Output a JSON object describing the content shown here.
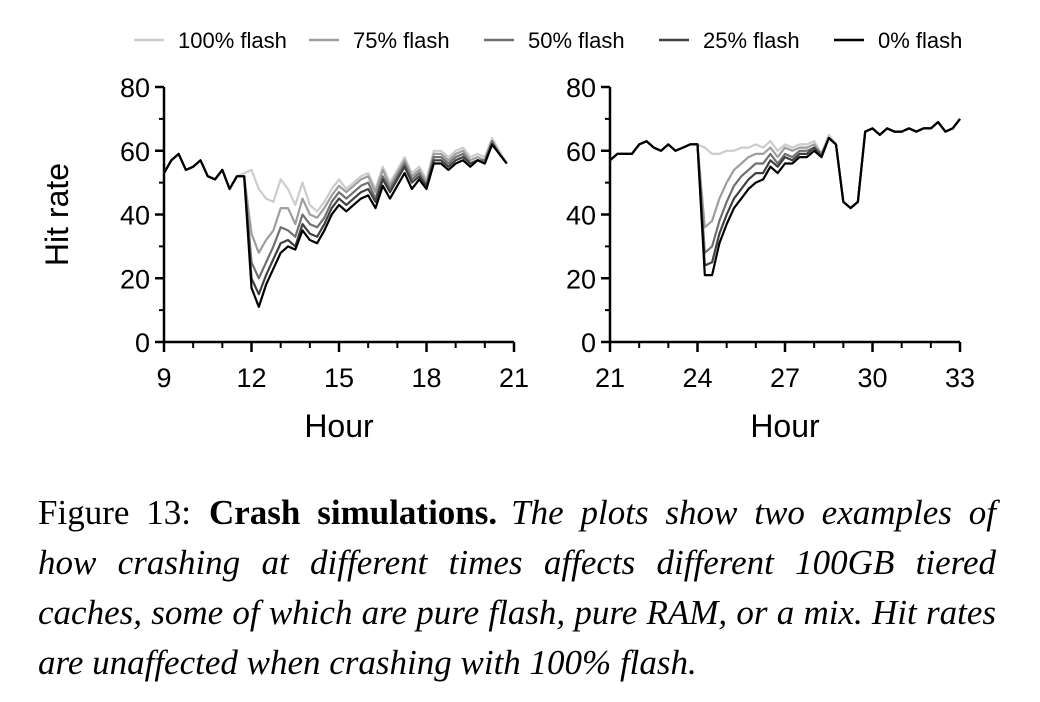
{
  "legend": [
    {
      "label": "100% flash",
      "color": "#cccccc"
    },
    {
      "label": "75% flash",
      "color": "#9e9e9e"
    },
    {
      "label": "50% flash",
      "color": "#707070"
    },
    {
      "label": "25% flash",
      "color": "#404040"
    },
    {
      "label": "0% flash",
      "color": "#000000"
    }
  ],
  "chart_data": [
    {
      "type": "line",
      "xlabel": "Hour",
      "ylabel": "Hit rate",
      "xlim": [
        9,
        21
      ],
      "ylim": [
        0,
        80
      ],
      "xticks": [
        "9",
        "12",
        "15",
        "18",
        "21"
      ],
      "yticks": [
        "0",
        "20",
        "40",
        "60",
        "80"
      ],
      "grid": false,
      "legend_position": "top",
      "x": [
        9.0,
        9.25,
        9.5,
        9.75,
        10.0,
        10.25,
        10.5,
        10.75,
        11.0,
        11.25,
        11.5,
        11.75,
        12.0,
        12.25,
        12.5,
        12.75,
        13.0,
        13.25,
        13.5,
        13.75,
        14.0,
        14.25,
        14.5,
        14.75,
        15.0,
        15.25,
        15.5,
        15.75,
        16.0,
        16.25,
        16.5,
        16.75,
        17.0,
        17.25,
        17.5,
        17.75,
        18.0,
        18.25,
        18.5,
        18.75,
        19.0,
        19.25,
        19.5,
        19.75,
        20.0,
        20.25,
        20.5,
        20.75
      ],
      "series": [
        {
          "name": "100% flash",
          "values": [
            53,
            57,
            59,
            54,
            55,
            57,
            52,
            51,
            54,
            48,
            52,
            53,
            54,
            48,
            45,
            44,
            51,
            48,
            43,
            50,
            43,
            41,
            44,
            48,
            51,
            48,
            50,
            52,
            53,
            48,
            55,
            50,
            54,
            58,
            53,
            55,
            51,
            60,
            60,
            58,
            60,
            61,
            58,
            59,
            58,
            64,
            60,
            56
          ]
        },
        {
          "name": "75% flash",
          "values": [
            53,
            57,
            59,
            54,
            55,
            57,
            52,
            51,
            54,
            48,
            52,
            52,
            34,
            28,
            32,
            35,
            42,
            42,
            37,
            45,
            40,
            39,
            42,
            46,
            49,
            47,
            49,
            51,
            52,
            47,
            54,
            49,
            53,
            57,
            52,
            54,
            50,
            59,
            59,
            57,
            59,
            60,
            57,
            58,
            57,
            63,
            59,
            56
          ]
        },
        {
          "name": "50% flash",
          "values": [
            53,
            57,
            59,
            54,
            55,
            57,
            52,
            51,
            54,
            48,
            52,
            52,
            25,
            20,
            25,
            30,
            36,
            35,
            33,
            40,
            37,
            36,
            39,
            44,
            47,
            45,
            47,
            49,
            50,
            45,
            52,
            48,
            52,
            56,
            51,
            53,
            49,
            58,
            58,
            56,
            58,
            59,
            56,
            57,
            57,
            63,
            59,
            56
          ]
        },
        {
          "name": "25% flash",
          "values": [
            53,
            57,
            59,
            54,
            55,
            57,
            52,
            51,
            54,
            48,
            52,
            52,
            20,
            15,
            21,
            26,
            31,
            32,
            30,
            37,
            34,
            33,
            37,
            42,
            45,
            43,
            45,
            47,
            48,
            44,
            51,
            47,
            51,
            55,
            50,
            52,
            49,
            57,
            57,
            55,
            57,
            58,
            56,
            57,
            56,
            62,
            59,
            56
          ]
        },
        {
          "name": "0% flash",
          "values": [
            53,
            57,
            59,
            54,
            55,
            57,
            52,
            51,
            54,
            48,
            52,
            52,
            17,
            11,
            18,
            23,
            28,
            30,
            29,
            35,
            32,
            31,
            35,
            40,
            43,
            41,
            43,
            45,
            46,
            42,
            49,
            45,
            49,
            53,
            48,
            51,
            48,
            56,
            56,
            54,
            56,
            57,
            55,
            57,
            56,
            62,
            59,
            56
          ]
        }
      ]
    },
    {
      "type": "line",
      "xlabel": "Hour",
      "ylabel": "",
      "xlim": [
        21,
        33
      ],
      "ylim": [
        0,
        80
      ],
      "xticks": [
        "21",
        "24",
        "27",
        "30",
        "33"
      ],
      "yticks": [
        "0",
        "20",
        "40",
        "60",
        "80"
      ],
      "grid": false,
      "x": [
        21.0,
        21.25,
        21.5,
        21.75,
        22.0,
        22.25,
        22.5,
        22.75,
        23.0,
        23.25,
        23.5,
        23.75,
        24.0,
        24.25,
        24.5,
        24.75,
        25.0,
        25.25,
        25.5,
        25.75,
        26.0,
        26.25,
        26.5,
        26.75,
        27.0,
        27.25,
        27.5,
        27.75,
        28.0,
        28.25,
        28.5,
        28.75,
        29.0,
        29.25,
        29.5,
        29.75,
        30.0,
        30.25,
        30.5,
        30.75,
        31.0,
        31.25,
        31.5,
        31.75,
        32.0,
        32.25,
        32.5,
        32.75,
        33.0
      ],
      "series": [
        {
          "name": "100% flash",
          "values": [
            57,
            59,
            59,
            59,
            62,
            63,
            61,
            60,
            62,
            60,
            61,
            62,
            62,
            61,
            59,
            59,
            60,
            60,
            61,
            61,
            62,
            61,
            63,
            60,
            62,
            61,
            62,
            62,
            63,
            59,
            65,
            62,
            44,
            42,
            44,
            66,
            67,
            65,
            67,
            66,
            66,
            67,
            66,
            67,
            67,
            69,
            66,
            67,
            70
          ]
        },
        {
          "name": "75% flash",
          "values": [
            57,
            59,
            59,
            59,
            62,
            63,
            61,
            60,
            62,
            60,
            61,
            62,
            62,
            36,
            38,
            45,
            50,
            54,
            56,
            58,
            59,
            59,
            61,
            58,
            61,
            60,
            61,
            61,
            62,
            59,
            64,
            62,
            44,
            42,
            44,
            66,
            67,
            65,
            67,
            66,
            66,
            67,
            66,
            67,
            67,
            69,
            66,
            67,
            70
          ]
        },
        {
          "name": "50% flash",
          "values": [
            57,
            59,
            59,
            59,
            62,
            63,
            61,
            60,
            62,
            60,
            61,
            62,
            62,
            28,
            30,
            38,
            44,
            49,
            52,
            54,
            56,
            56,
            59,
            56,
            59,
            58,
            60,
            60,
            61,
            59,
            64,
            62,
            44,
            42,
            44,
            66,
            67,
            65,
            67,
            66,
            66,
            67,
            66,
            67,
            67,
            69,
            66,
            67,
            70
          ]
        },
        {
          "name": "25% flash",
          "values": [
            57,
            59,
            59,
            59,
            62,
            63,
            61,
            60,
            62,
            60,
            61,
            62,
            62,
            24,
            25,
            34,
            40,
            45,
            48,
            51,
            53,
            53,
            57,
            55,
            58,
            57,
            59,
            59,
            61,
            58,
            64,
            62,
            44,
            42,
            44,
            66,
            67,
            65,
            67,
            66,
            66,
            67,
            66,
            67,
            67,
            69,
            66,
            67,
            70
          ]
        },
        {
          "name": "0% flash",
          "values": [
            57,
            59,
            59,
            59,
            62,
            63,
            61,
            60,
            62,
            60,
            61,
            62,
            62,
            21,
            21,
            31,
            37,
            42,
            45,
            48,
            50,
            51,
            55,
            53,
            56,
            56,
            58,
            58,
            60,
            58,
            64,
            62,
            44,
            42,
            44,
            66,
            67,
            65,
            67,
            66,
            66,
            67,
            66,
            67,
            67,
            69,
            66,
            67,
            70
          ]
        }
      ]
    }
  ],
  "caption": {
    "number": "Figure 13:",
    "title": "Crash simulations.",
    "text": "The plots show two examples of how crashing at different times affects different 100GB tiered caches, some of which are pure flash, pure RAM, or a mix. Hit rates are unaffected when crashing with 100% flash."
  }
}
